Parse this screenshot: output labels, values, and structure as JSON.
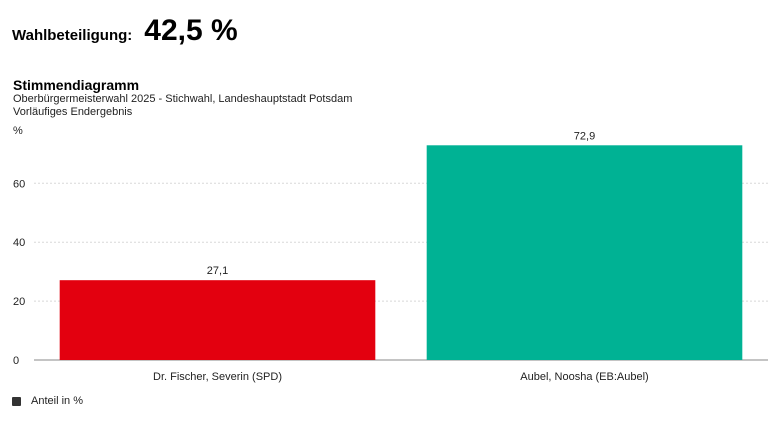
{
  "turnout": {
    "label": "Wahlbeteiligung:",
    "value": "42,5 %"
  },
  "chart_data": {
    "type": "bar",
    "title": "Stimmendiagramm",
    "subtitle": "Oberbürgermeisterwahl 2025 - Stichwahl, Landeshauptstadt Potsdam",
    "note": "Vorläufiges Endergebnis",
    "ylabel": "%",
    "ylim": [
      0,
      73
    ],
    "yticks": [
      0,
      20,
      40,
      60
    ],
    "grid": true,
    "categories": [
      "Dr. Fischer, Severin (SPD)",
      "Aubel, Noosha (EB:Aubel)"
    ],
    "values": [
      27.1,
      72.9
    ],
    "value_labels": [
      "27,1",
      "72,9"
    ],
    "colors": [
      "#e3000f",
      "#00b294"
    ],
    "legend": {
      "label": "Anteil in %",
      "position": "bottom-left"
    }
  }
}
